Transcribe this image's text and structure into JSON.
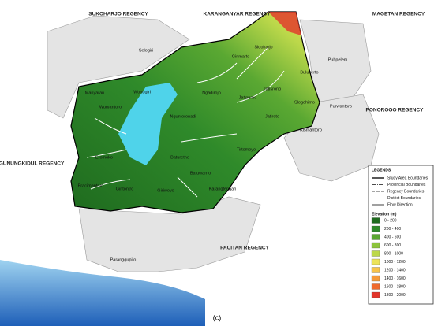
{
  "map": {
    "regions": [
      "SUKOHARJO REGENCY",
      "KARANGANYAR REGENCY",
      "MAGETAN REGENCY",
      "PONOROGO REGENCY",
      "GUNUNGKIDUL REGENCY",
      "PACITAN REGENCY"
    ],
    "districts": [
      "Selogiri",
      "Girimarto",
      "Sidoharjo",
      "Bulukerto",
      "Puhpelem",
      "Jatisrono",
      "Slogohimo",
      "Purwantoro",
      "Jatipurno",
      "Jatiroto",
      "Kismantoro",
      "Tirtomoyo",
      "Ngadirojo",
      "Nguntoronadi",
      "Manyaran",
      "Wonogiri",
      "Wuryantoro",
      "Eromoko",
      "Baturetno",
      "Batuwarno",
      "Pracimantoro",
      "Giritontro",
      "Giriwoyo",
      "Karangtengah",
      "Paranggupito"
    ],
    "legend": {
      "title": "LEGENDS",
      "lines": [
        "Study Area Boundaries",
        "Provincial Boundaries",
        "Regency Boundaries",
        "District Boundaries",
        "Flow Direction"
      ],
      "elevation_title": "Elevation (m)",
      "classes": [
        {
          "label": "0 - 200",
          "color": "#1f6b1f"
        },
        {
          "label": "200 - 400",
          "color": "#2f8a2a"
        },
        {
          "label": "400 - 600",
          "color": "#5aa832"
        },
        {
          "label": "600 - 800",
          "color": "#8cc43c"
        },
        {
          "label": "800 - 1000",
          "color": "#bcd84a"
        },
        {
          "label": "1000 - 1200",
          "color": "#ece35a"
        },
        {
          "label": "1200 - 1400",
          "color": "#f7c34a"
        },
        {
          "label": "1400 - 1600",
          "color": "#f59a3a"
        },
        {
          "label": "1600 - 1800",
          "color": "#ef6a2e"
        },
        {
          "label": "1800 - 2000",
          "color": "#e2342a"
        }
      ]
    }
  },
  "caption": "(c)"
}
